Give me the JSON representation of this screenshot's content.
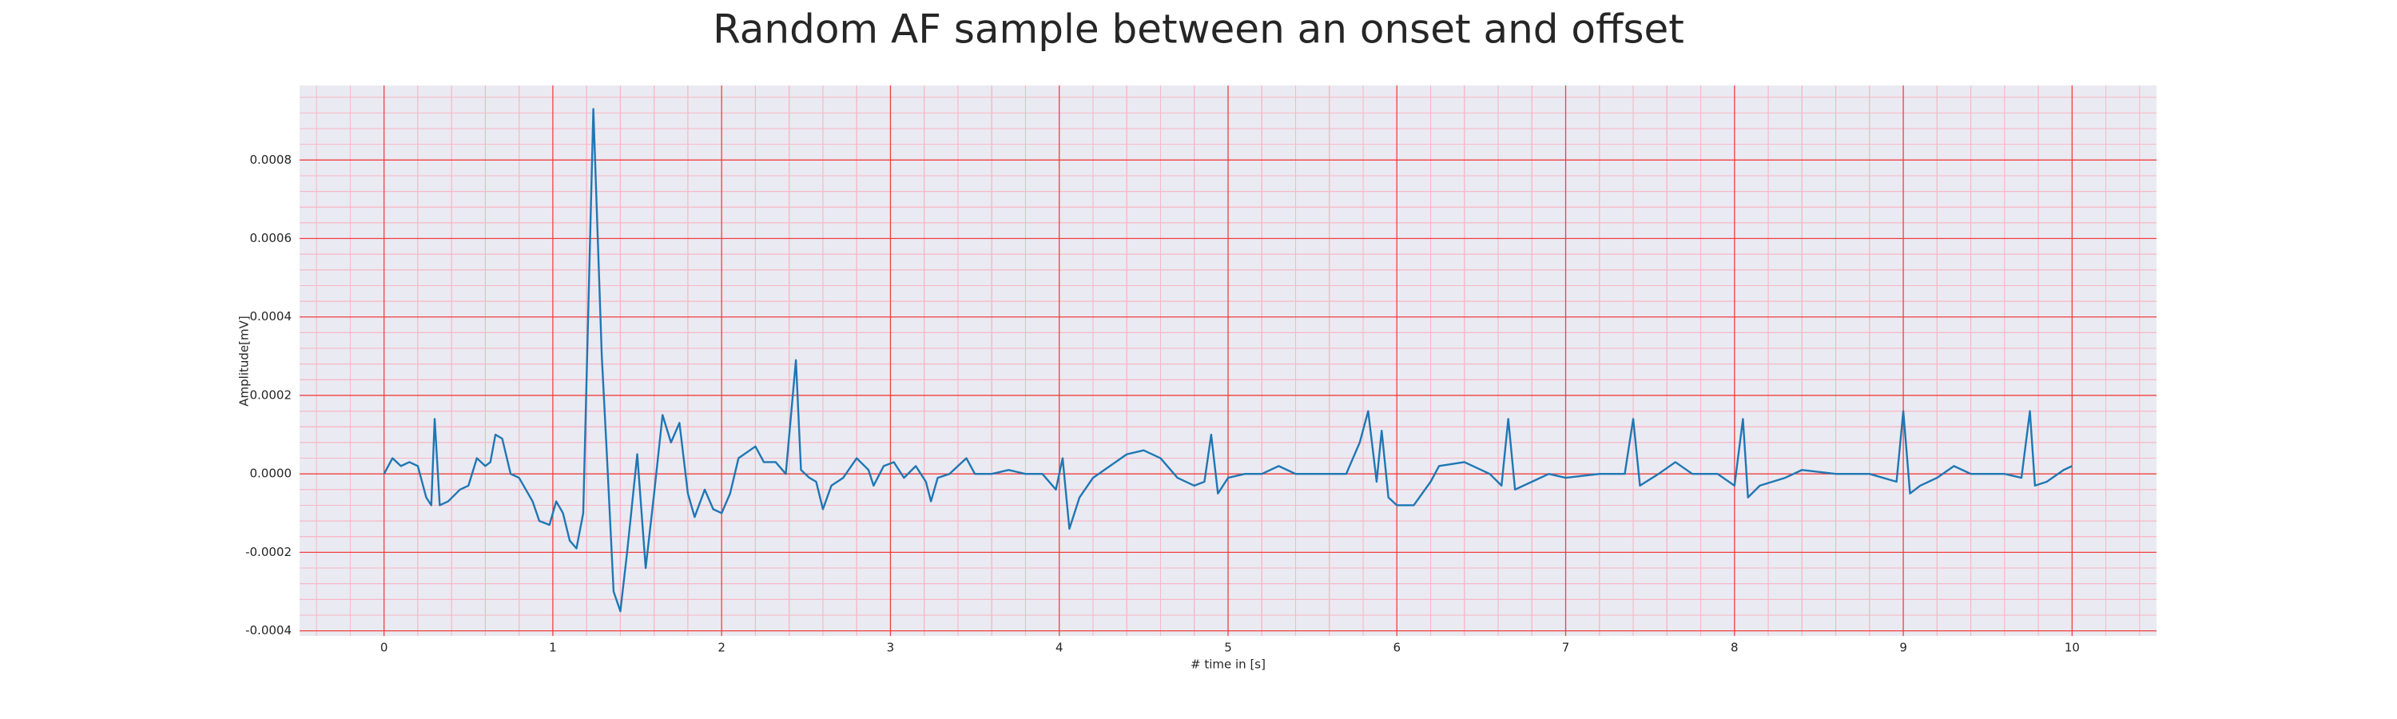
{
  "chart_data": {
    "type": "line",
    "title": "Random AF sample between an onset and offset",
    "xlabel": "# time in [s]",
    "ylabel": "Amplitude[mV]",
    "color": "#1f77b4",
    "grid": true,
    "minor_grid": true,
    "xlim": [
      -0.5,
      10.5
    ],
    "ylim": [
      -0.000413,
      0.00099
    ],
    "xticks": [
      0,
      1,
      2,
      3,
      4,
      5,
      6,
      7,
      8,
      9,
      10
    ],
    "yticks": [
      -0.0004,
      -0.0002,
      {
        "value": 0,
        "label": "0.0000"
      },
      0.0002,
      0.0004,
      0.0006,
      0.0008
    ],
    "x": [
      0,
      0.05,
      0.1,
      0.15,
      0.2,
      0.25,
      0.28,
      0.3,
      0.33,
      0.38,
      0.45,
      0.5,
      0.55,
      0.6,
      0.63,
      0.66,
      0.7,
      0.75,
      0.8,
      0.88,
      0.92,
      0.98,
      1.02,
      1.06,
      1.1,
      1.14,
      1.18,
      1.24,
      1.29,
      1.32,
      1.36,
      1.4,
      1.44,
      1.5,
      1.55,
      1.6,
      1.65,
      1.7,
      1.75,
      1.8,
      1.84,
      1.9,
      1.95,
      2.0,
      2.05,
      2.1,
      2.2,
      2.25,
      2.32,
      2.38,
      2.44,
      2.47,
      2.52,
      2.56,
      2.6,
      2.65,
      2.72,
      2.8,
      2.87,
      2.9,
      2.96,
      3.02,
      3.08,
      3.15,
      3.21,
      3.24,
      3.28,
      3.35,
      3.45,
      3.5,
      3.6,
      3.7,
      3.8,
      3.9,
      3.98,
      4.02,
      4.06,
      4.12,
      4.2,
      4.3,
      4.4,
      4.5,
      4.6,
      4.7,
      4.8,
      4.86,
      4.9,
      4.94,
      5.0,
      5.1,
      5.2,
      5.3,
      5.4,
      5.5,
      5.6,
      5.7,
      5.78,
      5.83,
      5.88,
      5.91,
      5.95,
      6.0,
      6.1,
      6.2,
      6.25,
      6.4,
      6.55,
      6.62,
      6.66,
      6.7,
      6.8,
      6.9,
      7.0,
      7.2,
      7.35,
      7.4,
      7.44,
      7.55,
      7.65,
      7.75,
      7.9,
      8.0,
      8.05,
      8.08,
      8.15,
      8.3,
      8.4,
      8.6,
      8.8,
      8.96,
      9.0,
      9.04,
      9.1,
      9.2,
      9.3,
      9.4,
      9.6,
      9.7,
      9.75,
      9.78,
      9.85,
      9.95,
      10.0
    ],
    "values": [
      0,
      4e-05,
      2e-05,
      3e-05,
      2e-05,
      -6e-05,
      -8e-05,
      0.00014,
      -8e-05,
      -7e-05,
      -4e-05,
      -3e-05,
      4e-05,
      2e-05,
      3e-05,
      0.0001,
      9e-05,
      0,
      -1e-05,
      -7e-05,
      -0.00012,
      -0.00013,
      -7e-05,
      -0.0001,
      -0.00017,
      -0.00019,
      -0.0001,
      0.00093,
      0.0003,
      5e-05,
      -0.0003,
      -0.00035,
      -0.0002,
      5e-05,
      -0.00024,
      -5e-05,
      0.00015,
      8e-05,
      0.00013,
      -5e-05,
      -0.00011,
      -4e-05,
      -9e-05,
      -0.0001,
      -5e-05,
      4e-05,
      7e-05,
      3e-05,
      3e-05,
      0,
      0.00029,
      1e-05,
      -1e-05,
      -2e-05,
      -9e-05,
      -3e-05,
      -1e-05,
      4e-05,
      1e-05,
      -3e-05,
      2e-05,
      3e-05,
      -1e-05,
      2e-05,
      -2e-05,
      -7e-05,
      -1e-05,
      0,
      4e-05,
      0,
      0,
      1e-05,
      0,
      0,
      -4e-05,
      4e-05,
      -0.00014,
      -6e-05,
      -1e-05,
      2e-05,
      5e-05,
      6e-05,
      4e-05,
      -1e-05,
      -3e-05,
      -2e-05,
      0.0001,
      -5e-05,
      -1e-05,
      0,
      0,
      2e-05,
      0,
      0,
      0,
      0,
      8e-05,
      0.00016,
      -2e-05,
      0.00011,
      -6e-05,
      -8e-05,
      -8e-05,
      -2e-05,
      2e-05,
      3e-05,
      0,
      -3e-05,
      0.00014,
      -4e-05,
      -2e-05,
      0,
      -1e-05,
      0,
      0,
      0.00014,
      -3e-05,
      0,
      3e-05,
      0,
      0,
      -3e-05,
      0.00014,
      -6e-05,
      -3e-05,
      -1e-05,
      1e-05,
      0,
      0,
      -2e-05,
      0.00016,
      -5e-05,
      -3e-05,
      -1e-05,
      2e-05,
      0,
      0,
      -1e-05,
      0.00016,
      -3e-05,
      -2e-05,
      1e-05,
      2e-05
    ]
  }
}
